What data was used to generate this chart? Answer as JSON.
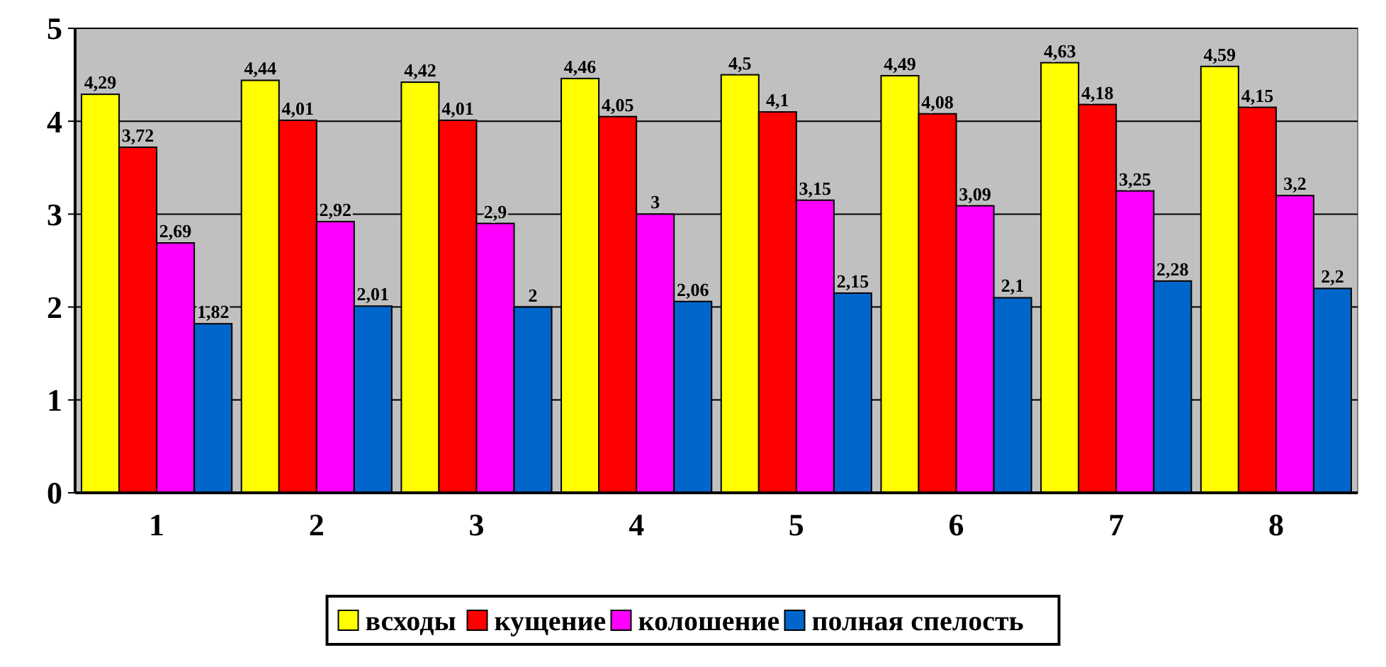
{
  "chart_data": {
    "type": "bar",
    "categories": [
      "1",
      "2",
      "3",
      "4",
      "5",
      "6",
      "7",
      "8"
    ],
    "series": [
      {
        "name": "всходы",
        "color": "#ffff00",
        "values": [
          4.29,
          4.44,
          4.42,
          4.46,
          4.5,
          4.49,
          4.63,
          4.59
        ],
        "value_labels": [
          "4,29",
          "4,44",
          "4,42",
          "4,46",
          "4,5",
          "4,49",
          "4,63",
          "4,59"
        ]
      },
      {
        "name": "кущение",
        "color": "#ff0000",
        "values": [
          3.72,
          4.01,
          4.01,
          4.05,
          4.1,
          4.08,
          4.18,
          4.15
        ],
        "value_labels": [
          "3,72",
          "4,01",
          "4,01",
          "4,05",
          "4,1",
          "4,08",
          "4,18",
          "4,15"
        ]
      },
      {
        "name": "колошение",
        "color": "#ff00ff",
        "values": [
          2.69,
          2.92,
          2.9,
          3,
          3.15,
          3.09,
          3.25,
          3.2
        ],
        "value_labels": [
          "2,69",
          "2,92",
          "2,9",
          "3",
          "3,15",
          "3,09",
          "3,25",
          "3,2"
        ]
      },
      {
        "name": "полная спелость",
        "color": "#0066cc",
        "values": [
          1.82,
          2.01,
          2,
          2.06,
          2.15,
          2.1,
          2.28,
          2.2
        ],
        "value_labels": [
          "1,82",
          "2,01",
          "2",
          "2,06",
          "2,15",
          "2,1",
          "2,28",
          "2,2"
        ]
      }
    ],
    "ylim": [
      0,
      5
    ],
    "yticks": [
      0,
      1,
      2,
      3,
      4,
      5
    ],
    "grid": "y",
    "legend": "bottom"
  }
}
